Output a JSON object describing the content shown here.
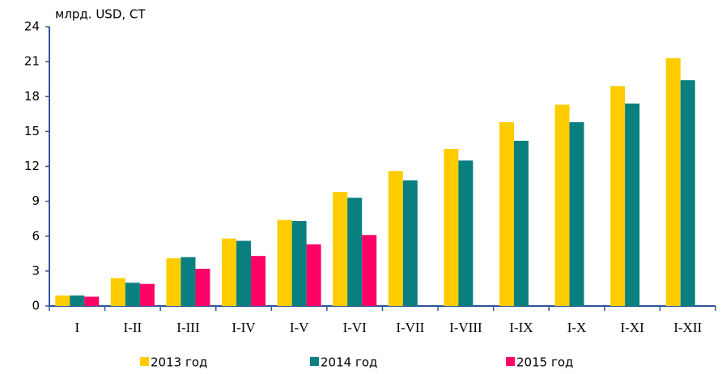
{
  "chart_data": {
    "type": "bar",
    "title": "млрд. USD, СТ",
    "categories": [
      "I",
      "I-II",
      "I-III",
      "I-IV",
      "I-V",
      "I-VI",
      "I-VII",
      "I-VIII",
      "I-IX",
      "I-X",
      "I-XI",
      "I-XII"
    ],
    "series": [
      {
        "name": "2013 год",
        "color": "#ffcc00",
        "values": [
          0.9,
          2.4,
          4.1,
          5.8,
          7.4,
          9.8,
          11.6,
          13.5,
          15.8,
          17.3,
          18.9,
          21.3
        ]
      },
      {
        "name": "2014 год",
        "color": "#0a7f7f",
        "values": [
          0.9,
          2.0,
          4.2,
          5.6,
          7.3,
          9.3,
          10.8,
          12.5,
          14.2,
          15.8,
          17.4,
          19.4
        ]
      },
      {
        "name": "2015 год",
        "color": "#ff0066",
        "values": [
          0.8,
          1.9,
          3.2,
          4.3,
          5.3,
          6.1,
          null,
          null,
          null,
          null,
          null,
          null
        ]
      }
    ],
    "ylim": [
      0,
      24
    ],
    "yticks": [
      0,
      3,
      6,
      9,
      12,
      15,
      18,
      21,
      24
    ],
    "grid": false
  }
}
